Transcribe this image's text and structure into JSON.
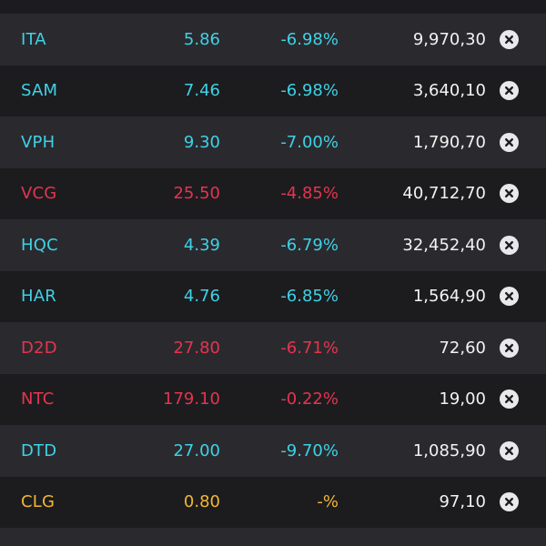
{
  "colors": {
    "down": "#3fd1e6",
    "up": "#e5344f",
    "ref": "#f2b632",
    "volume": "#f2f2f2"
  },
  "rows": [
    {
      "symbol": "ITA",
      "price": "5.86",
      "change": "-6.98%",
      "volume": "9,970,30",
      "color": "#3fd1e6"
    },
    {
      "symbol": "SAM",
      "price": "7.46",
      "change": "-6.98%",
      "volume": "3,640,10",
      "color": "#3fd1e6"
    },
    {
      "symbol": "VPH",
      "price": "9.30",
      "change": "-7.00%",
      "volume": "1,790,70",
      "color": "#3fd1e6"
    },
    {
      "symbol": "VCG",
      "price": "25.50",
      "change": "-4.85%",
      "volume": "40,712,70",
      "color": "#e5344f"
    },
    {
      "symbol": "HQC",
      "price": "4.39",
      "change": "-6.79%",
      "volume": "32,452,40",
      "color": "#3fd1e6"
    },
    {
      "symbol": "HAR",
      "price": "4.76",
      "change": "-6.85%",
      "volume": "1,564,90",
      "color": "#3fd1e6"
    },
    {
      "symbol": "D2D",
      "price": "27.80",
      "change": "-6.71%",
      "volume": "72,60",
      "color": "#e5344f"
    },
    {
      "symbol": "NTC",
      "price": "179.10",
      "change": "-0.22%",
      "volume": "19,00",
      "color": "#e5344f"
    },
    {
      "symbol": "DTD",
      "price": "27.00",
      "change": "-9.70%",
      "volume": "1,085,90",
      "color": "#3fd1e6"
    },
    {
      "symbol": "CLG",
      "price": "0.80",
      "change": "-%",
      "volume": "97,10",
      "color": "#f2b632"
    }
  ],
  "icons": {
    "remove": "close-circle-icon"
  }
}
